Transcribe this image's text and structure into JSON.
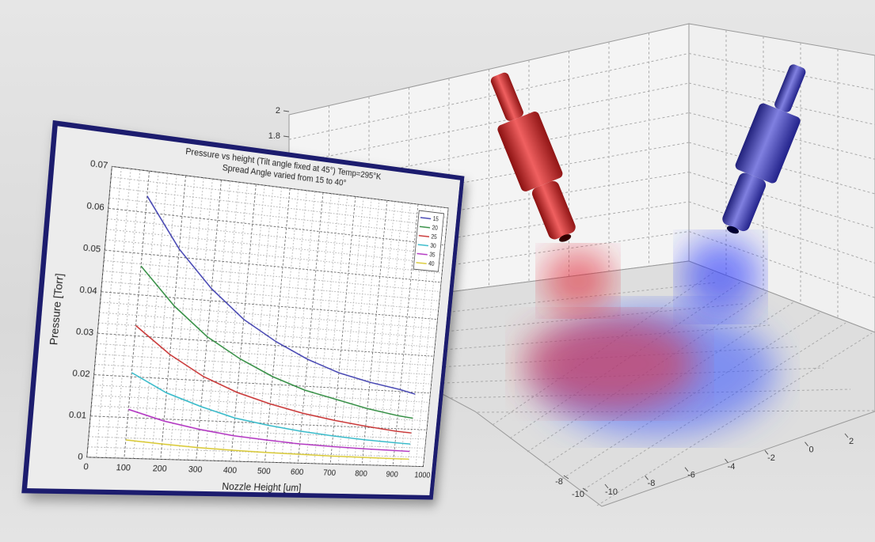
{
  "chart_data": [
    {
      "type": "line",
      "title": "Pressure vs height (Tilt angle fixed at 45°) Temp=295°K",
      "subtitle": "Spread Angle varied from 15 to 40°",
      "x_label": "Nozzle Height [um]",
      "y_label": "Pressure [Torr]",
      "x": [
        100,
        200,
        300,
        400,
        500,
        600,
        700,
        800,
        900,
        950
      ],
      "series": [
        {
          "name": "15",
          "color": "#4040b0",
          "values": [
            0.064,
            0.052,
            0.043,
            0.036,
            0.031,
            0.027,
            0.024,
            0.022,
            0.0205,
            0.0195
          ]
        },
        {
          "name": "20",
          "color": "#2e8b3e",
          "values": [
            0.047,
            0.038,
            0.031,
            0.026,
            0.022,
            0.019,
            0.017,
            0.015,
            0.0135,
            0.013
          ]
        },
        {
          "name": "25",
          "color": "#c83030",
          "values": [
            0.0325,
            0.026,
            0.021,
            0.0175,
            0.015,
            0.013,
            0.0115,
            0.0103,
            0.0093,
            0.009
          ]
        },
        {
          "name": "30",
          "color": "#30b8c8",
          "values": [
            0.021,
            0.0165,
            0.0135,
            0.011,
            0.0095,
            0.0083,
            0.0074,
            0.0067,
            0.0062,
            0.006
          ]
        },
        {
          "name": "35",
          "color": "#b030c0",
          "values": [
            0.012,
            0.0095,
            0.0078,
            0.0065,
            0.0057,
            0.005,
            0.0046,
            0.0043,
            0.0041,
            0.004
          ]
        },
        {
          "name": "40",
          "color": "#d8c830",
          "values": [
            0.0045,
            0.0038,
            0.0032,
            0.0028,
            0.0025,
            0.0023,
            0.0021,
            0.002,
            0.0019,
            0.0019
          ]
        }
      ],
      "xlim": [
        0,
        1000
      ],
      "xticks": [
        0,
        100,
        200,
        300,
        400,
        500,
        600,
        700,
        800,
        900,
        1000
      ],
      "ylim": [
        0,
        0.07
      ],
      "yticks": [
        0,
        0.01,
        0.02,
        0.03,
        0.04,
        0.05,
        0.06,
        0.07
      ],
      "grid": true,
      "legend": "upper right"
    },
    {
      "type": "volume",
      "zticks": [
        1.8,
        2
      ],
      "xticks": [
        -10,
        -8,
        -6,
        -4,
        -2,
        0,
        2
      ],
      "yticks": [
        -10,
        -8
      ]
    }
  ]
}
